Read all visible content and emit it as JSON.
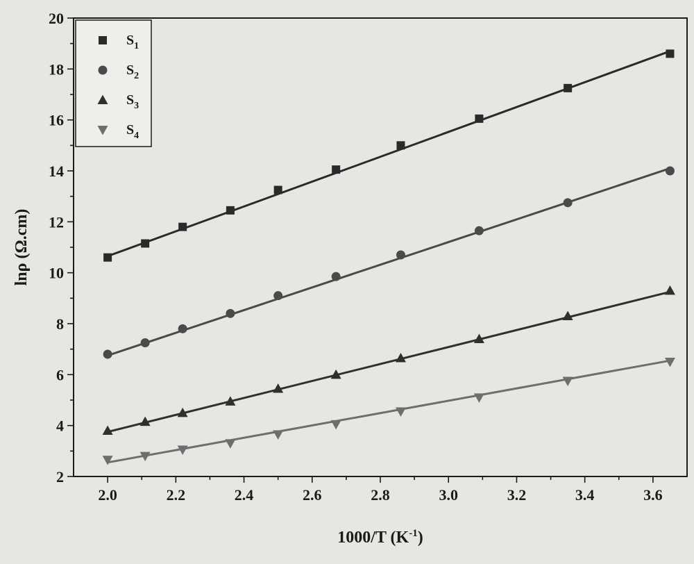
{
  "chart_data": {
    "type": "scatter",
    "title": "",
    "xlabel": "1000/T (K",
    "xlabel_sup": "-1",
    "xlabel_tail": ")",
    "ylabel": "lnρ (Ω.cm)",
    "xlim": [
      1.9,
      3.7
    ],
    "ylim": [
      2,
      20
    ],
    "x_ticks": [
      "2.0",
      "2.2",
      "2.4",
      "2.6",
      "2.8",
      "3.0",
      "3.2",
      "3.4",
      "3.6"
    ],
    "y_ticks": [
      "2",
      "4",
      "6",
      "8",
      "10",
      "12",
      "14",
      "16",
      "18",
      "20"
    ],
    "grid": false,
    "legend_position": "top-left",
    "x": [
      2.0,
      2.11,
      2.22,
      2.36,
      2.5,
      2.67,
      2.86,
      3.09,
      3.35,
      3.65
    ],
    "series": [
      {
        "name": "S",
        "subscript": "1",
        "marker": "square",
        "color": "#2a2a2a",
        "y": [
          10.6,
          11.15,
          11.8,
          12.45,
          13.25,
          14.05,
          15.0,
          16.05,
          17.25,
          18.6
        ],
        "fit": [
          10.65,
          18.7
        ]
      },
      {
        "name": "S",
        "subscript": "2",
        "marker": "circle",
        "color": "#4a4a4a",
        "y": [
          6.8,
          7.25,
          7.8,
          8.4,
          9.1,
          9.85,
          10.7,
          11.65,
          12.75,
          14.0
        ],
        "fit": [
          6.75,
          14.1
        ]
      },
      {
        "name": "S",
        "subscript": "3",
        "marker": "triangle-up",
        "color": "#2f2f2f",
        "y": [
          3.8,
          4.15,
          4.5,
          4.95,
          5.45,
          6.0,
          6.65,
          7.4,
          8.3,
          9.3
        ],
        "fit": [
          3.75,
          9.25
        ]
      },
      {
        "name": "S",
        "subscript": "4",
        "marker": "triangle-down",
        "color": "#6e6e6e",
        "y": [
          2.65,
          2.8,
          3.05,
          3.3,
          3.65,
          4.05,
          4.55,
          5.1,
          5.75,
          6.5
        ],
        "fit": [
          2.55,
          6.55
        ]
      }
    ]
  }
}
